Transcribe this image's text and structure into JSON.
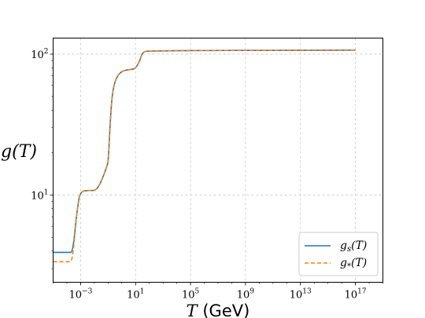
{
  "chart_data": {
    "type": "line",
    "xscale": "log",
    "yscale": "log",
    "xlim": [
      1e-05,
      1e+19
    ],
    "ylim": [
      2.4,
      130
    ],
    "grid": true,
    "legend_position": "bottom-right",
    "ylabel": "g(T)",
    "xlabel_var": "T",
    "xlabel_unit": "(GeV)",
    "x_ticks": [
      {
        "value": 0.001,
        "base": "10",
        "exp": "−3"
      },
      {
        "value": 10,
        "base": "10",
        "exp": "1"
      },
      {
        "value": 100000,
        "base": "10",
        "exp": "5"
      },
      {
        "value": 1000000000.0,
        "base": "10",
        "exp": "9"
      },
      {
        "value": 10000000000000.0,
        "base": "10",
        "exp": "13"
      },
      {
        "value": 1e+17,
        "base": "10",
        "exp": "17"
      }
    ],
    "y_ticks": [
      {
        "value": 10,
        "base": "10",
        "exp": "1"
      },
      {
        "value": 100,
        "base": "10",
        "exp": "2"
      }
    ],
    "series": [
      {
        "name_main": "g",
        "name_sub": "s",
        "name_arg": "(T)",
        "color": "#1f77b4",
        "style": "solid",
        "x": [
          1e-05,
          0.0001,
          0.0002,
          0.0003,
          0.0005,
          0.0008,
          0.001,
          0.002,
          0.005,
          0.01,
          0.02,
          0.05,
          0.08,
          0.1,
          0.15,
          0.2,
          0.3,
          0.5,
          1,
          2,
          5,
          10,
          20,
          30,
          50,
          100,
          1000,
          100000,
          10000000000.0,
          1e+17
        ],
        "y": [
          3.91,
          3.91,
          3.92,
          4.5,
          7.0,
          9.6,
          10.2,
          10.7,
          10.75,
          10.8,
          11.5,
          14.0,
          16.0,
          17.5,
          35.0,
          50.0,
          62.0,
          70.0,
          75.0,
          77.0,
          78.0,
          80.0,
          90.0,
          100.0,
          104.5,
          105.0,
          105.5,
          106.0,
          106.3,
          106.75
        ]
      },
      {
        "name_main": "g",
        "name_sub": "*",
        "name_arg": "(T)",
        "color": "#ff7f0e",
        "style": "dashed",
        "x": [
          1e-05,
          0.0001,
          0.0002,
          0.0003,
          0.0005,
          0.0008,
          0.001,
          0.002,
          0.005,
          0.01,
          0.02,
          0.05,
          0.08,
          0.1,
          0.15,
          0.2,
          0.3,
          0.5,
          1,
          2,
          5,
          10,
          20,
          30,
          50,
          100,
          1000,
          100000,
          10000000000.0,
          1e+17
        ],
        "y": [
          3.36,
          3.36,
          3.38,
          4.2,
          7.0,
          9.6,
          10.2,
          10.7,
          10.75,
          10.8,
          11.5,
          14.0,
          16.0,
          17.5,
          35.0,
          50.0,
          62.0,
          70.0,
          75.0,
          77.0,
          78.0,
          80.0,
          90.0,
          100.0,
          104.5,
          105.0,
          105.5,
          106.0,
          106.3,
          106.75
        ]
      }
    ]
  }
}
